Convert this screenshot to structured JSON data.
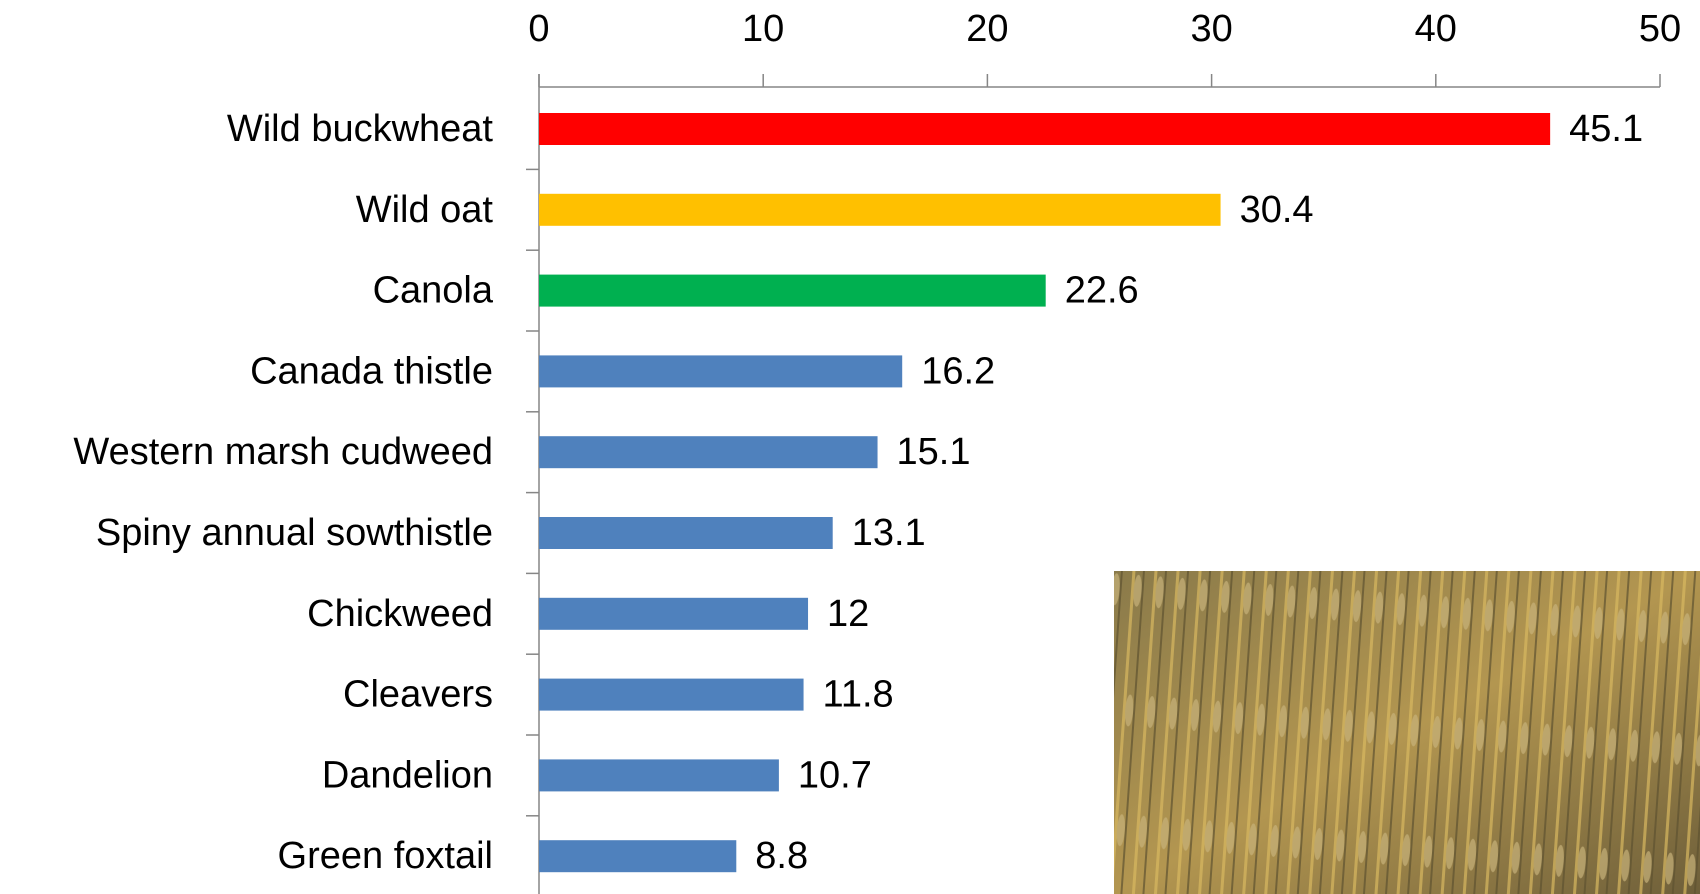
{
  "chart_data": {
    "type": "bar",
    "orientation": "horizontal",
    "categories": [
      "Wild buckwheat",
      "Wild oat",
      "Canola",
      "Canada thistle",
      "Western marsh cudweed",
      "Spiny annual sowthistle",
      "Chickweed",
      "Cleavers",
      "Dandelion",
      "Green foxtail"
    ],
    "values": [
      45.1,
      30.4,
      22.6,
      16.2,
      15.1,
      13.1,
      12,
      11.8,
      10.7,
      8.8
    ],
    "colors": [
      "#ff0000",
      "#ffc000",
      "#00b050",
      "#4f81bd",
      "#4f81bd",
      "#4f81bd",
      "#4f81bd",
      "#4f81bd",
      "#4f81bd",
      "#4f81bd"
    ],
    "xlim": [
      0,
      50
    ],
    "xticks": [
      0,
      10,
      20,
      30,
      40,
      50
    ],
    "grid": false
  }
}
